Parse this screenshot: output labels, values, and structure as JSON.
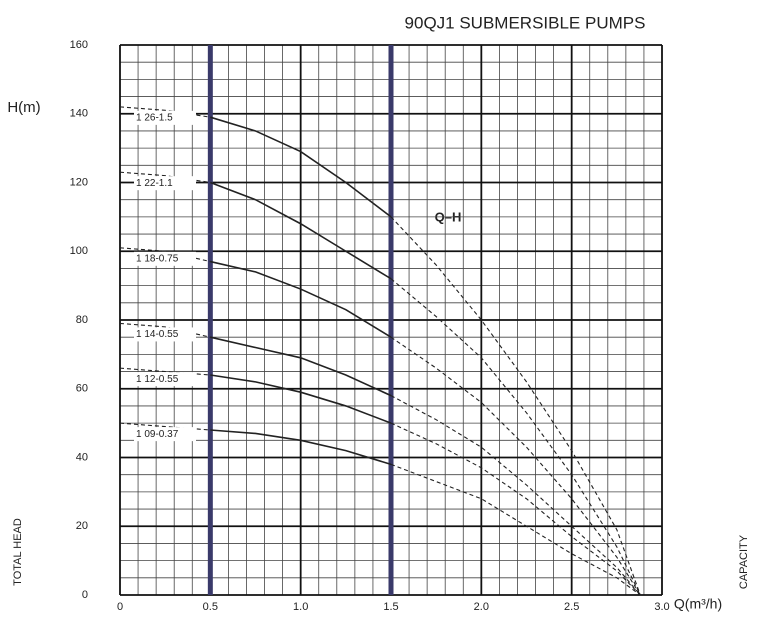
{
  "chart_data": {
    "type": "line",
    "title": "90QJ1 SUBMERSIBLE PUMPS",
    "ylabel": "H(m)",
    "ylabel_side": "TOTAL HEAD",
    "xlabel": "Q(m³/h)",
    "xlabel_side": "CAPACITY",
    "annotation": "Q–H",
    "xlim": [
      0,
      3.0
    ],
    "ylim": [
      0,
      160
    ],
    "xticks": [
      0,
      {
        "value": 0.5,
        "label": "0.5"
      },
      {
        "value": 1.0,
        "label": "1.0"
      },
      {
        "value": 1.5,
        "label": "1.5"
      },
      {
        "value": 2.0,
        "label": "2.0"
      },
      {
        "value": 2.5,
        "label": "2.5"
      },
      {
        "value": 3.0,
        "label": "3.0"
      }
    ],
    "yticks": [
      0,
      20,
      40,
      60,
      80,
      100,
      120,
      140,
      160
    ],
    "grid": true,
    "operating_range": [
      0.5,
      1.5
    ],
    "series": [
      {
        "name": "1 26-1.5",
        "color": "#222222",
        "x": [
          0,
          0.25,
          0.5,
          0.75,
          1.0,
          1.25,
          1.5,
          1.75,
          2.0,
          2.25,
          2.5,
          2.75,
          2.88
        ],
        "values": [
          142,
          141,
          139,
          135,
          129,
          120,
          110,
          96,
          80,
          62,
          42,
          19,
          0
        ]
      },
      {
        "name": "1 22-1.1",
        "color": "#222222",
        "x": [
          0,
          0.25,
          0.5,
          0.75,
          1.0,
          1.25,
          1.5,
          1.75,
          2.0,
          2.25,
          2.5,
          2.75,
          2.88
        ],
        "values": [
          123,
          122,
          120,
          115,
          108,
          100,
          92,
          81,
          69,
          53,
          35,
          14,
          0
        ]
      },
      {
        "name": "1 18-0.75",
        "color": "#222222",
        "x": [
          0,
          0.25,
          0.5,
          0.75,
          1.0,
          1.25,
          1.5,
          1.75,
          2.0,
          2.25,
          2.5,
          2.75,
          2.88
        ],
        "values": [
          101,
          100,
          97,
          94,
          89,
          83,
          75,
          66,
          56,
          43,
          28,
          11,
          0
        ]
      },
      {
        "name": "1 14-0.55",
        "color": "#222222",
        "x": [
          0,
          0.25,
          0.5,
          0.75,
          1.0,
          1.25,
          1.5,
          1.75,
          2.0,
          2.25,
          2.5,
          2.75,
          2.88
        ],
        "values": [
          79,
          78,
          75,
          72,
          69,
          64,
          58,
          51,
          43,
          32,
          20,
          8,
          0
        ]
      },
      {
        "name": "1 12-0.55",
        "color": "#222222",
        "x": [
          0,
          0.25,
          0.5,
          0.75,
          1.0,
          1.25,
          1.5,
          1.75,
          2.0,
          2.25,
          2.5,
          2.75,
          2.88
        ],
        "values": [
          66,
          65,
          64,
          62,
          59,
          55,
          50,
          44,
          37,
          28,
          17,
          7,
          0
        ]
      },
      {
        "name": "1 09-0.37",
        "color": "#222222",
        "x": [
          0,
          0.25,
          0.5,
          0.75,
          1.0,
          1.25,
          1.5,
          1.75,
          2.0,
          2.25,
          2.5,
          2.75,
          2.88
        ],
        "values": [
          50,
          49,
          48,
          47,
          45,
          42,
          38,
          33,
          28,
          20,
          12,
          5,
          0
        ]
      }
    ]
  }
}
